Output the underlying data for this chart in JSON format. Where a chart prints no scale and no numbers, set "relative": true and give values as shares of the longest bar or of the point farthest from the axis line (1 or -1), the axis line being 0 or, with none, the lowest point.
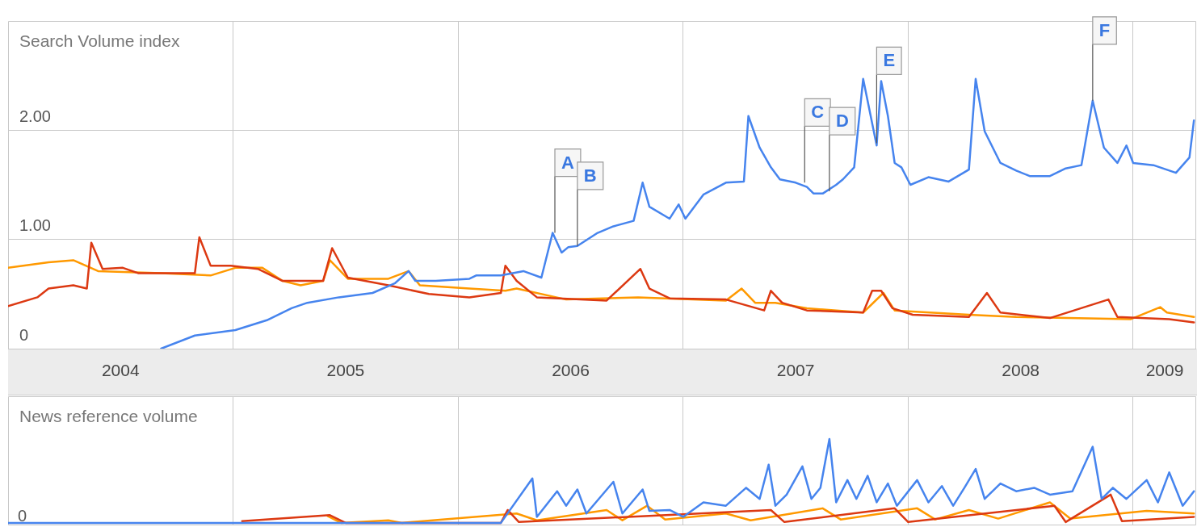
{
  "chart_data": [
    {
      "type": "line",
      "title": "Search Volume index",
      "xlim": [
        2004.0,
        2009.28
      ],
      "ylim": [
        0,
        3
      ],
      "xticks": [
        {
          "value": 2004.5,
          "label": "2004"
        },
        {
          "value": 2005,
          "label": null
        },
        {
          "value": 2005.5,
          "label": "2005"
        },
        {
          "value": 2006,
          "label": null
        },
        {
          "value": 2006.5,
          "label": "2006"
        },
        {
          "value": 2007,
          "label": null
        },
        {
          "value": 2007.5,
          "label": "2007"
        },
        {
          "value": 2008,
          "label": null
        },
        {
          "value": 2008.5,
          "label": "2008"
        },
        {
          "value": 2009,
          "label": null
        },
        {
          "value": 2009.14,
          "label": "2009"
        }
      ],
      "yticks": [
        0,
        {
          "value": 1,
          "label": "1.00"
        },
        {
          "value": 2,
          "label": "2.00"
        }
      ],
      "grid": true,
      "series": [
        {
          "color": "#4684ee",
          "x": [
            2004.68,
            2004.83,
            2005.01,
            2005.15,
            2005.26,
            2005.33,
            2005.47,
            2005.62,
            2005.72,
            2005.78,
            2005.81,
            2005.9,
            2006.05,
            2006.08,
            2006.19,
            2006.29,
            2006.37,
            2006.42,
            2006.46,
            2006.49,
            2006.53,
            2006.62,
            2006.69,
            2006.78,
            2006.82,
            2006.85,
            2006.94,
            2006.98,
            2007.01,
            2007.09,
            2007.19,
            2007.27,
            2007.29,
            2007.34,
            2007.39,
            2007.43,
            2007.5,
            2007.55,
            2007.58,
            2007.62,
            2007.68,
            2007.71,
            2007.76,
            2007.8,
            2007.86,
            2007.88,
            2007.91,
            2007.94,
            2007.97,
            2008.01,
            2008.09,
            2008.18,
            2008.27,
            2008.3,
            2008.34,
            2008.41,
            2008.48,
            2008.54,
            2008.63,
            2008.7,
            2008.77,
            2008.82,
            2008.87,
            2008.93,
            2008.97,
            2009.0,
            2009.09,
            2009.19,
            2009.25,
            2009.27
          ],
          "values": [
            0,
            0.12,
            0.17,
            0.26,
            0.37,
            0.42,
            0.47,
            0.51,
            0.6,
            0.71,
            0.62,
            0.62,
            0.64,
            0.67,
            0.67,
            0.71,
            0.65,
            1.06,
            0.88,
            0.93,
            0.94,
            1.06,
            1.12,
            1.17,
            1.52,
            1.3,
            1.19,
            1.32,
            1.19,
            1.41,
            1.52,
            1.53,
            2.13,
            1.84,
            1.66,
            1.55,
            1.52,
            1.48,
            1.42,
            1.42,
            1.5,
            1.55,
            1.66,
            2.47,
            1.86,
            2.45,
            2.13,
            1.7,
            1.66,
            1.5,
            1.57,
            1.53,
            1.64,
            2.47,
            1.99,
            1.7,
            1.63,
            1.58,
            1.58,
            1.65,
            1.68,
            2.27,
            1.84,
            1.7,
            1.86,
            1.7,
            1.68,
            1.61,
            1.75,
            2.09
          ]
        },
        {
          "color": "#dc3912",
          "x": [
            2004.0,
            2004.13,
            2004.18,
            2004.29,
            2004.35,
            2004.37,
            2004.42,
            2004.51,
            2004.58,
            2004.83,
            2004.85,
            2004.9,
            2004.99,
            2005.11,
            2005.22,
            2005.4,
            2005.44,
            2005.51,
            2005.69,
            2005.87,
            2006.05,
            2006.19,
            2006.21,
            2006.26,
            2006.35,
            2006.66,
            2006.81,
            2006.85,
            2006.94,
            2007.19,
            2007.36,
            2007.39,
            2007.44,
            2007.55,
            2007.8,
            2007.84,
            2007.88,
            2007.93,
            2008.02,
            2008.27,
            2008.35,
            2008.41,
            2008.63,
            2008.89,
            2008.93,
            2009.16,
            2009.27
          ],
          "values": [
            0.39,
            0.47,
            0.55,
            0.58,
            0.55,
            0.97,
            0.73,
            0.74,
            0.69,
            0.69,
            1.02,
            0.76,
            0.76,
            0.73,
            0.62,
            0.62,
            0.92,
            0.65,
            0.58,
            0.5,
            0.47,
            0.51,
            0.76,
            0.62,
            0.47,
            0.44,
            0.73,
            0.55,
            0.46,
            0.45,
            0.35,
            0.53,
            0.42,
            0.35,
            0.33,
            0.53,
            0.53,
            0.37,
            0.31,
            0.29,
            0.51,
            0.33,
            0.28,
            0.45,
            0.29,
            0.27,
            0.24
          ]
        },
        {
          "color": "#ff9900",
          "x": [
            2004.0,
            2004.18,
            2004.29,
            2004.4,
            2004.68,
            2004.9,
            2005.01,
            2005.13,
            2005.22,
            2005.3,
            2005.4,
            2005.43,
            2005.51,
            2005.69,
            2005.78,
            2005.83,
            2006.05,
            2006.21,
            2006.26,
            2006.48,
            2006.8,
            2007.19,
            2007.26,
            2007.32,
            2007.41,
            2007.55,
            2007.8,
            2007.89,
            2007.94,
            2008.27,
            2008.48,
            2008.99,
            2009.12,
            2009.15,
            2009.27
          ],
          "values": [
            0.74,
            0.79,
            0.81,
            0.71,
            0.69,
            0.67,
            0.74,
            0.74,
            0.62,
            0.58,
            0.62,
            0.81,
            0.64,
            0.64,
            0.71,
            0.58,
            0.55,
            0.53,
            0.55,
            0.45,
            0.47,
            0.44,
            0.55,
            0.42,
            0.42,
            0.37,
            0.33,
            0.51,
            0.35,
            0.31,
            0.29,
            0.27,
            0.38,
            0.33,
            0.29
          ]
        }
      ],
      "annotations": [
        {
          "text": "A",
          "x": 2006.43,
          "y": 1.06
        },
        {
          "text": "B",
          "x": 2006.53,
          "y": 0.94
        },
        {
          "text": "C",
          "x": 2007.54,
          "y": 1.52
        },
        {
          "text": "D",
          "x": 2007.65,
          "y": 1.44
        },
        {
          "text": "E",
          "x": 2007.86,
          "y": 1.88
        },
        {
          "text": "F",
          "x": 2008.82,
          "y": 2.27
        }
      ]
    },
    {
      "type": "line",
      "title": "News reference volume",
      "relative": true,
      "xlim": [
        2004.0,
        2009.28
      ],
      "tick_labels": false,
      "grid": "x",
      "xticks": [
        {
          "value": 2005,
          "label": null
        },
        {
          "value": 2006,
          "label": null
        },
        {
          "value": 2007,
          "label": null
        },
        {
          "value": 2008,
          "label": null
        },
        {
          "value": 2009,
          "label": null
        }
      ],
      "series": [
        {
          "color": "#4684ee",
          "x": [
            2004.0,
            2006.19,
            2006.33,
            2006.35,
            2006.44,
            2006.48,
            2006.53,
            2006.57,
            2006.69,
            2006.73,
            2006.82,
            2006.85,
            2006.94,
            2007.0,
            2007.09,
            2007.19,
            2007.28,
            2007.34,
            2007.38,
            2007.41,
            2007.46,
            2007.53,
            2007.57,
            2007.61,
            2007.65,
            2007.68,
            2007.73,
            2007.77,
            2007.82,
            2007.86,
            2007.91,
            2007.95,
            2008.04,
            2008.09,
            2008.15,
            2008.2,
            2008.25,
            2008.3,
            2008.34,
            2008.41,
            2008.48,
            2008.56,
            2008.63,
            2008.73,
            2008.82,
            2008.86,
            2008.91,
            2008.97,
            2009.06,
            2009.11,
            2009.16,
            2009.22,
            2009.27
          ],
          "values": [
            0.02,
            0.02,
            0.54,
            0.09,
            0.39,
            0.22,
            0.41,
            0.13,
            0.5,
            0.13,
            0.41,
            0.16,
            0.17,
            0.09,
            0.26,
            0.22,
            0.43,
            0.3,
            0.7,
            0.22,
            0.35,
            0.68,
            0.3,
            0.43,
            1,
            0.26,
            0.52,
            0.3,
            0.57,
            0.26,
            0.48,
            0.22,
            0.52,
            0.26,
            0.45,
            0.22,
            0.43,
            0.65,
            0.3,
            0.48,
            0.39,
            0.43,
            0.35,
            0.39,
            0.91,
            0.3,
            0.43,
            0.3,
            0.52,
            0.26,
            0.61,
            0.22,
            0.39
          ]
        },
        {
          "color": "#dc3912",
          "x": [
            2005.04,
            2005.43,
            2005.5,
            2006.19,
            2006.22,
            2006.27,
            2007.39,
            2007.45,
            2007.94,
            2008.0,
            2008.65,
            2008.7,
            2008.9,
            2008.95,
            2009.27
          ],
          "values": [
            0.04,
            0.11,
            0.02,
            0.02,
            0.17,
            0.03,
            0.17,
            0.03,
            0.19,
            0.03,
            0.22,
            0.03,
            0.35,
            0.04,
            0.09
          ]
        },
        {
          "color": "#ff9900",
          "x": [
            2005.42,
            2005.48,
            2005.69,
            2005.75,
            2006.26,
            2006.35,
            2006.66,
            2006.73,
            2006.84,
            2006.92,
            2007.19,
            2007.3,
            2007.62,
            2007.7,
            2008.04,
            2008.12,
            2008.27,
            2008.4,
            2008.63,
            2008.72,
            2009.06,
            2009.27
          ],
          "values": [
            0.1,
            0.02,
            0.05,
            0.02,
            0.13,
            0.05,
            0.17,
            0.05,
            0.22,
            0.06,
            0.13,
            0.05,
            0.19,
            0.06,
            0.19,
            0.06,
            0.17,
            0.07,
            0.26,
            0.07,
            0.16,
            0.13
          ]
        }
      ],
      "annotations": [
        {
          "text": "0",
          "y": 0
        }
      ]
    }
  ]
}
